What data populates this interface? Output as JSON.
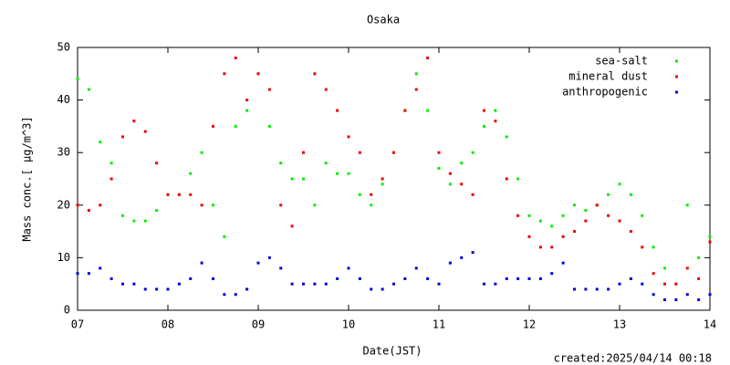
{
  "chart_data": {
    "type": "scatter",
    "title": "Osaka",
    "xlabel": "Date(JST)",
    "ylabel": "Mass conc.[ μg/m^3]",
    "annotation": "created:2025/04/14 00:18",
    "x": [
      7,
      7.125,
      7.25,
      7.375,
      7.5,
      7.625,
      7.75,
      7.875,
      8,
      8.125,
      8.25,
      8.375,
      8.5,
      8.625,
      8.75,
      8.875,
      9,
      9.125,
      9.25,
      9.375,
      9.5,
      9.625,
      9.75,
      9.875,
      10,
      10.125,
      10.25,
      10.375,
      10.5,
      10.625,
      10.75,
      10.875,
      11,
      11.125,
      11.25,
      11.375,
      11.5,
      11.625,
      11.75,
      11.875,
      12,
      12.125,
      12.25,
      12.375,
      12.5,
      12.625,
      12.75,
      12.875,
      13,
      13.125,
      13.25,
      13.375,
      13.5,
      13.625,
      13.75,
      13.875,
      14
    ],
    "series": [
      {
        "name": "sea-salt",
        "color": "#00ee00",
        "values": [
          44,
          42,
          32,
          28,
          18,
          17,
          17,
          19,
          22,
          22,
          26,
          30,
          20,
          14,
          35,
          38,
          45,
          35,
          28,
          25,
          25,
          20,
          28,
          26,
          26,
          22,
          20,
          24,
          30,
          38,
          45,
          38,
          27,
          24,
          28,
          30,
          35,
          38,
          33,
          25,
          18,
          17,
          16,
          18,
          20,
          19,
          20,
          22,
          24,
          22,
          18,
          12,
          8,
          5,
          20,
          10,
          14
        ]
      },
      {
        "name": "mineral dust",
        "color": "#ee0000",
        "values": [
          20,
          19,
          20,
          25,
          33,
          36,
          34,
          28,
          22,
          22,
          22,
          20,
          35,
          45,
          48,
          40,
          45,
          42,
          20,
          16,
          30,
          45,
          42,
          38,
          33,
          30,
          22,
          25,
          30,
          38,
          42,
          48,
          30,
          26,
          24,
          22,
          38,
          36,
          25,
          18,
          14,
          12,
          12,
          14,
          15,
          17,
          20,
          18,
          17,
          15,
          12,
          7,
          5,
          5,
          8,
          6,
          13
        ]
      },
      {
        "name": "anthropogenic",
        "color": "#0000dd",
        "values": [
          7,
          7,
          8,
          6,
          5,
          5,
          4,
          4,
          4,
          5,
          6,
          9,
          6,
          3,
          3,
          4,
          9,
          10,
          8,
          5,
          5,
          5,
          5,
          6,
          8,
          6,
          4,
          4,
          5,
          6,
          8,
          6,
          5,
          9,
          10,
          11,
          5,
          5,
          6,
          6,
          6,
          6,
          7,
          9,
          4,
          4,
          4,
          4,
          5,
          6,
          5,
          3,
          2,
          2,
          3,
          2,
          3
        ]
      }
    ],
    "xlim": [
      7,
      14
    ],
    "xticks": [
      {
        "value": 7,
        "label": "07"
      },
      {
        "value": 8,
        "label": "08"
      },
      {
        "value": 9,
        "label": "09"
      },
      10,
      11,
      12,
      13,
      14
    ],
    "ylim": [
      0,
      50
    ],
    "yticks": [
      0,
      10,
      20,
      30,
      40,
      50
    ],
    "grid": false,
    "legend": "upper right"
  }
}
